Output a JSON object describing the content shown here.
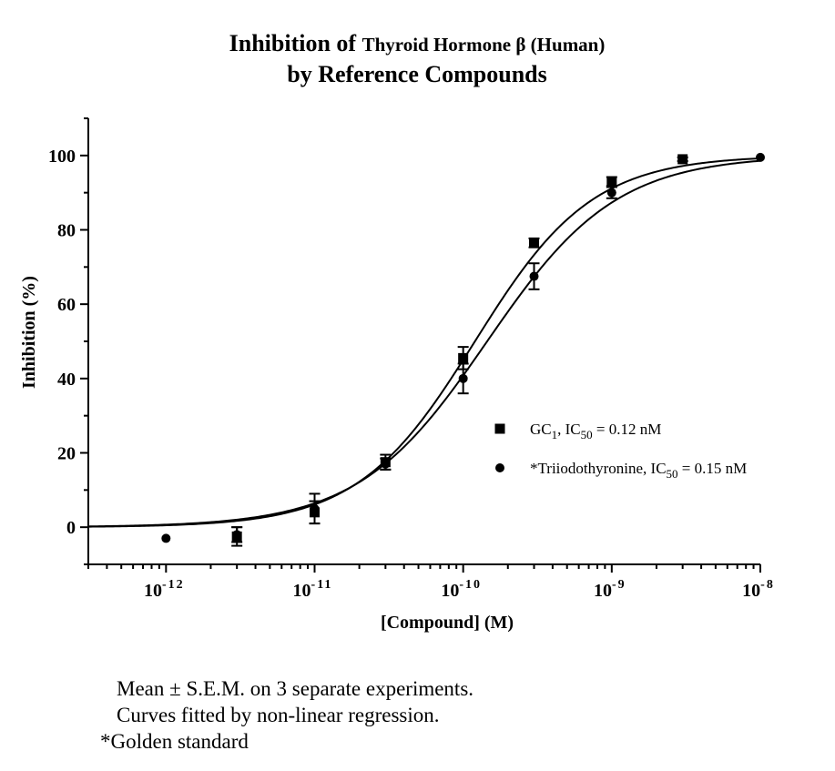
{
  "chart_data": {
    "type": "scatter",
    "title_parts": [
      {
        "text": "Inhibition of ",
        "size": "large"
      },
      {
        "text": "Thyroid Hormone β (Human)",
        "size": "small"
      }
    ],
    "subtitle": "by Reference Compounds",
    "xlabel": "[Compound] (M)",
    "ylabel": "Inhibition (%)",
    "x_scale": "log",
    "xlim": [
      3e-13,
      1e-08
    ],
    "ylim": [
      -10,
      110
    ],
    "x_ticks": [
      {
        "value": 1e-12,
        "base": "10",
        "exp": "-12"
      },
      {
        "value": 1e-11,
        "base": "10",
        "exp": "-11"
      },
      {
        "value": 1e-10,
        "base": "10",
        "exp": "-10"
      },
      {
        "value": 1e-09,
        "base": "10",
        "exp": "-9"
      },
      {
        "value": 1e-08,
        "base": "10",
        "exp": "-8"
      }
    ],
    "y_ticks": [
      0,
      20,
      40,
      60,
      80,
      100
    ],
    "grid": false,
    "legend_position": "center-right",
    "series": [
      {
        "marker": "square",
        "legend": {
          "prefix": "GC",
          "sub1": "1",
          "mid": ", IC",
          "sub2": "50",
          "suffix": " = 0.12 nM"
        },
        "ic50": 1.2e-10,
        "hill": 1.1,
        "points": [
          {
            "x": 3e-12,
            "y": -2.5,
            "err": 2.5
          },
          {
            "x": 1e-11,
            "y": 4,
            "err": 3
          },
          {
            "x": 3e-11,
            "y": 17.5,
            "err": 2
          },
          {
            "x": 1e-10,
            "y": 45.5,
            "err": 3
          },
          {
            "x": 3e-10,
            "y": 76.5,
            "err": 1.2
          },
          {
            "x": 1e-09,
            "y": 93,
            "err": 1.2
          },
          {
            "x": 3e-09,
            "y": 99,
            "err": 0.5
          }
        ]
      },
      {
        "marker": "circle",
        "legend": {
          "prefix": "*Triiodothyronine, IC",
          "sub1": "",
          "mid": "",
          "sub2": "50",
          "suffix": " = 0.15 nM"
        },
        "ic50": 1.45e-10,
        "hill": 1.0,
        "points": [
          {
            "x": 1e-12,
            "y": -3,
            "err": 0
          },
          {
            "x": 3e-12,
            "y": -2,
            "err": 2
          },
          {
            "x": 1e-11,
            "y": 5,
            "err": 4
          },
          {
            "x": 3e-11,
            "y": 17,
            "err": 1.5
          },
          {
            "x": 1e-10,
            "y": 40,
            "err": 4
          },
          {
            "x": 3e-10,
            "y": 67.5,
            "err": 3.5
          },
          {
            "x": 1e-09,
            "y": 90,
            "err": 1.5
          },
          {
            "x": 1e-08,
            "y": 99.5,
            "err": 0
          }
        ]
      }
    ]
  },
  "footnotes": [
    "Mean ± S.E.M. on 3 separate experiments.",
    "Curves fitted by non-linear regression.",
    "*Golden standard"
  ]
}
